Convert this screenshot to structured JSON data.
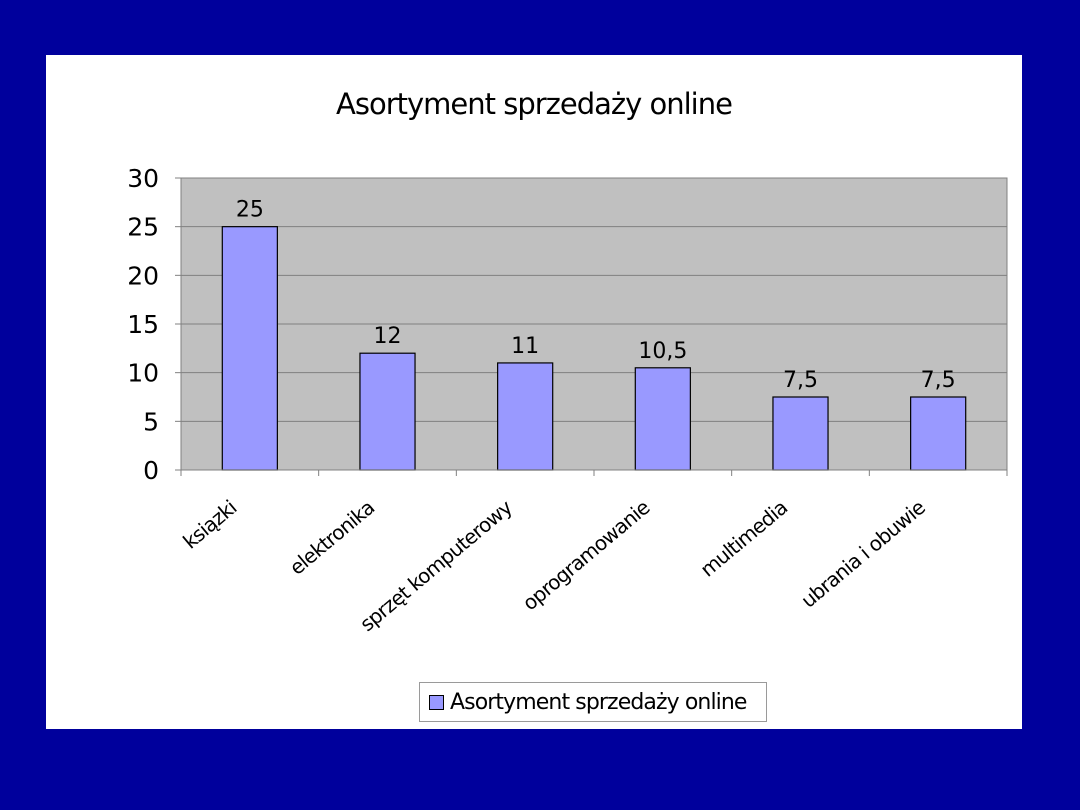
{
  "chart_data": {
    "type": "bar",
    "title": "Asortyment sprzedaży online",
    "categories": [
      "książki",
      "elektronika",
      "sprzęt komputerowy",
      "oprogramowanie",
      "multimedia",
      "ubrania i obuwie"
    ],
    "categories_visible": [
      "ksiązki",
      "elektronika",
      "sprzęt komputerowy",
      "oprogramowanie",
      "multimedia",
      "ubrania i obuwie"
    ],
    "series": [
      {
        "name": "Asortyment sprzedaży online",
        "values": [
          25,
          12,
          11,
          10.5,
          7.5,
          7.5
        ],
        "data_labels": [
          "25",
          "12",
          "11",
          "10,5",
          "7,5",
          "7,5"
        ],
        "color": "#9999ff"
      }
    ],
    "ylim": [
      0,
      30
    ],
    "yticks": [
      0,
      5,
      10,
      15,
      20,
      25,
      30
    ],
    "xlabel": "",
    "ylabel": "",
    "grid": true,
    "legend_position": "bottom",
    "plot_background": "#c0c0c0"
  }
}
